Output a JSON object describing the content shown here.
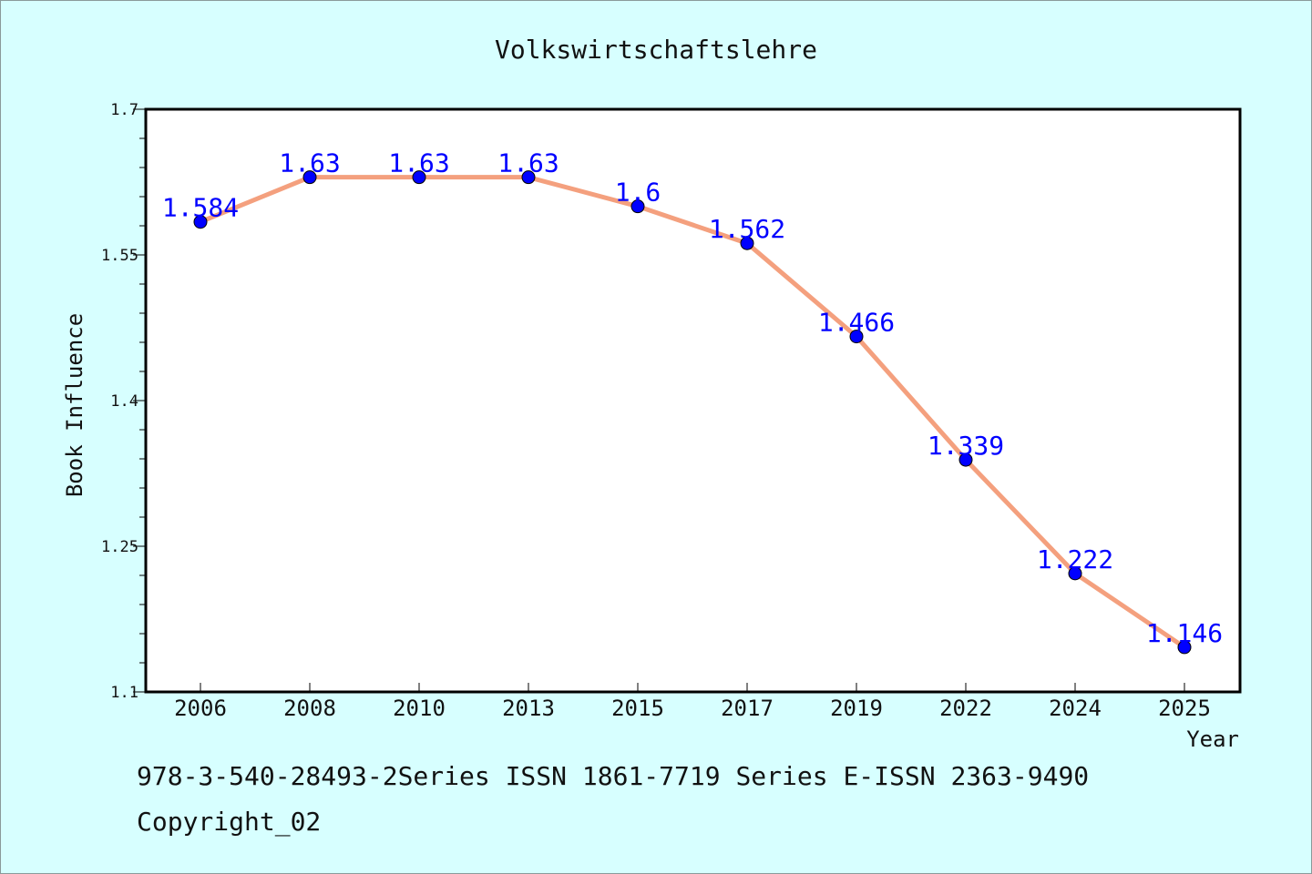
{
  "colors": {
    "background": "#d7ffff",
    "plot_background": "#ffffff",
    "line": "#f4a07e",
    "marker": "#0000ff",
    "data_label": "#0000ff",
    "axis": "#000000"
  },
  "chart_data": {
    "type": "line",
    "title": "Volkswirtschaftslehre",
    "xlabel": "Year",
    "ylabel": "Book Influence",
    "categories": [
      "2006",
      "2008",
      "2010",
      "2013",
      "2015",
      "2017",
      "2019",
      "2022",
      "2024",
      "2025"
    ],
    "series": [
      {
        "values": [
          1.584,
          1.63,
          1.63,
          1.63,
          1.6,
          1.562,
          1.466,
          1.339,
          1.222,
          1.146
        ],
        "labels": [
          "1.584",
          "1.63",
          "1.63",
          "1.63",
          "1.6",
          "1.562",
          "1.466",
          "1.339",
          "1.222",
          "1.146"
        ]
      }
    ],
    "ylim": [
      1.1,
      1.7
    ],
    "yticks": [
      "1.1",
      "1.25",
      "1.4",
      "1.55",
      "1.7"
    ],
    "ytick_values": [
      1.1,
      1.25,
      1.4,
      1.55,
      1.7
    ],
    "grid": false,
    "legend": "none"
  },
  "footer": {
    "isbn_line": "978-3-540-28493-2Series ISSN 1861-7719 Series E-ISSN 2363-9490",
    "copyright": "Copyright_02"
  }
}
